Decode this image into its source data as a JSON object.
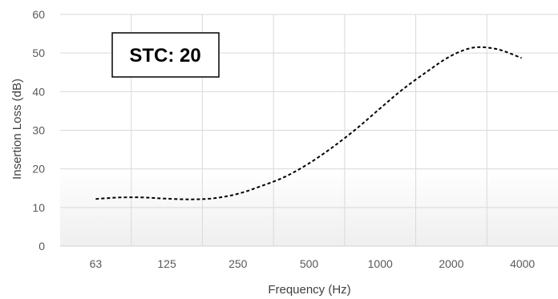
{
  "chart_data": {
    "type": "line",
    "xlabel": "Frequency (Hz)",
    "ylabel": "Insertion Loss (dB)",
    "categories": [
      "63",
      "125",
      "250",
      "500",
      "1000",
      "2000",
      "4000"
    ],
    "ylim": [
      0,
      60
    ],
    "yticks": [
      0,
      10,
      20,
      30,
      40,
      50,
      60
    ],
    "grid": true,
    "line_style": "dashed",
    "series": [
      {
        "x": [
          63,
          80,
          100,
          125,
          160,
          200,
          250,
          315,
          400,
          500,
          630,
          800,
          1000,
          1250,
          1600,
          2000,
          2500,
          3150,
          4000
        ],
        "values": [
          12.2,
          12.6,
          12.6,
          12.3,
          12.1,
          12.4,
          13.5,
          15.5,
          18.0,
          21.3,
          25.5,
          30.4,
          35.5,
          40.5,
          45.3,
          49.2,
          51.4,
          51.0,
          48.7
        ],
        "color": "#000000"
      }
    ],
    "annotation": "STC: 20"
  },
  "colors": {
    "grid": "#d9d9d9",
    "line": "#000000",
    "band_gradient": "#f2f2f2"
  }
}
